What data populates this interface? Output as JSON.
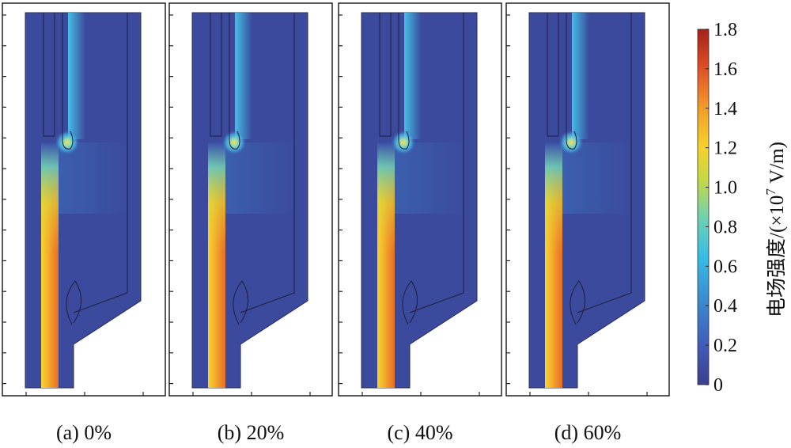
{
  "chart_data": {
    "type": "heatmap",
    "panels": [
      {
        "caption": "(a) 0%",
        "percent": 0
      },
      {
        "caption": "(b) 20%",
        "percent": 20
      },
      {
        "caption": "(c) 40%",
        "percent": 40
      },
      {
        "caption": "(d) 60%",
        "percent": 60
      }
    ],
    "colorbar": {
      "label": "电场强度/(×10",
      "label_sup": "7",
      "label_tail": " V/m)",
      "range": [
        0,
        1.8
      ],
      "ticks": [
        "0",
        "0.2",
        "0.4",
        "0.6",
        "0.8",
        "1.0",
        "1.2",
        "1.4",
        "1.6",
        "1.8"
      ],
      "colormap": [
        "#3b3f8f",
        "#3f5cb8",
        "#3a8fd3",
        "#36bde6",
        "#6fd1b0",
        "#c7d843",
        "#f5d12c",
        "#f39a2a",
        "#dd4a24",
        "#a32218"
      ]
    },
    "field_max_region": "left vertical channel (~1.3 ×10^7 V/m)",
    "background_level": 0.18,
    "grid": false
  }
}
